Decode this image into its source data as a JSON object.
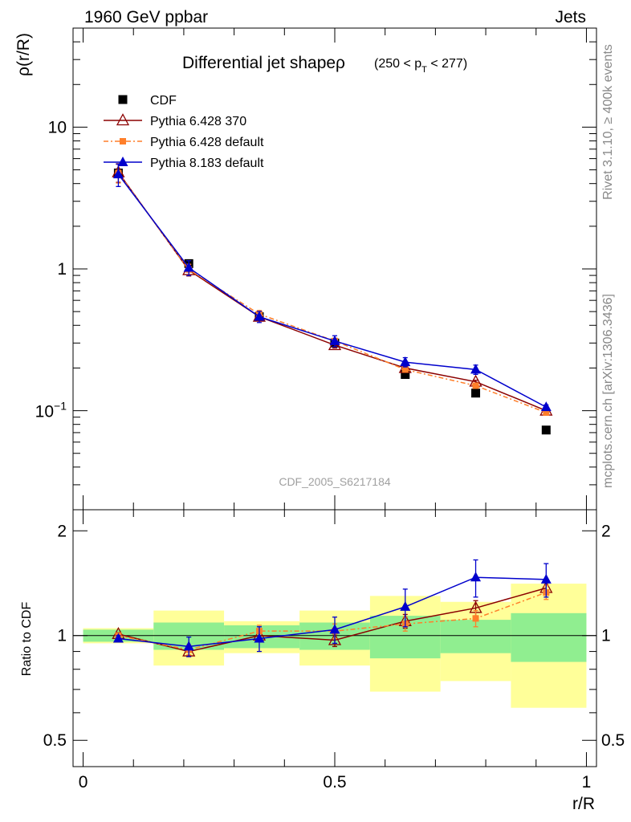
{
  "header": {
    "left": "1960 GeV ppbar",
    "right": "Jets"
  },
  "side_labels": {
    "rivet": "Rivet 3.1.10, ≥ 400k events",
    "mcplots": "mcplots.cern.ch [arXiv:1306.3436]"
  },
  "chart_data": {
    "type": "line",
    "title": "Differential jet shapeρ",
    "title_suffix": "(250 < p",
    "title_sub": "T",
    "title_end": " < 277)",
    "watermark": "CDF_2005_S6217184",
    "xlabel": "r/R",
    "ylabel": "ρ(r/R)",
    "ratio_ylabel": "Ratio to CDF",
    "x": [
      0.07,
      0.21,
      0.35,
      0.5,
      0.64,
      0.78,
      0.92
    ],
    "xlim": [
      -0.02,
      1.02
    ],
    "ylim": [
      0.02,
      50
    ],
    "ratio_ylim": [
      0.42,
      2.3
    ],
    "x_ticks": [
      {
        "v": 0,
        "label": "0"
      },
      {
        "v": 0.5,
        "label": "0.5"
      },
      {
        "v": 1,
        "label": "1"
      }
    ],
    "y_ticks": [
      {
        "v": 0.1,
        "base": "10",
        "exp": "−1"
      },
      {
        "v": 1,
        "label": "1"
      },
      {
        "v": 10,
        "label": "10"
      }
    ],
    "ratio_ticks": [
      {
        "v": 0.5,
        "label": "0.5"
      },
      {
        "v": 1,
        "label": "1"
      },
      {
        "v": 2,
        "label": "2"
      }
    ],
    "series": [
      {
        "name": "CDF",
        "color": "#000000",
        "marker": "square",
        "values": [
          4.75,
          1.09,
          0.46,
          0.3,
          0.18,
          0.133,
          0.073
        ],
        "ratio": [
          1,
          1,
          1,
          1,
          1,
          1,
          1
        ]
      },
      {
        "name": "Pythia 6.428 370",
        "color": "#8b0000",
        "marker": "triangle-open",
        "line": "solid",
        "values": [
          4.8,
          0.98,
          0.46,
          0.29,
          0.2,
          0.16,
          0.1
        ],
        "errors": [
          0.05,
          0.03,
          0.02,
          0.015,
          0.01,
          0.008,
          0.006
        ],
        "ratio": [
          1.01,
          0.9,
          1.0,
          0.97,
          1.1,
          1.2,
          1.37
        ],
        "ratio_err": [
          0.01,
          0.03,
          0.04,
          0.04,
          0.05,
          0.06,
          0.06
        ]
      },
      {
        "name": "Pythia 6.428 default",
        "color": "#ff7f2a",
        "marker": "square-small",
        "line": "dashdot",
        "values": [
          4.75,
          0.99,
          0.48,
          0.31,
          0.195,
          0.15,
          0.097
        ],
        "errors": [
          0.05,
          0.03,
          0.02,
          0.015,
          0.01,
          0.008,
          0.006
        ],
        "ratio": [
          1.0,
          0.91,
          1.03,
          1.03,
          1.08,
          1.12,
          1.33
        ],
        "ratio_err": [
          0.01,
          0.03,
          0.04,
          0.05,
          0.05,
          0.06,
          0.06
        ]
      },
      {
        "name": "Pythia 8.183 default",
        "color": "#0000cc",
        "marker": "triangle",
        "line": "solid",
        "values": [
          4.65,
          1.02,
          0.46,
          0.31,
          0.22,
          0.195,
          0.106
        ],
        "errors": [
          0.06,
          0.04,
          0.03,
          0.03,
          0.025,
          0.025,
          0.012
        ],
        "ratio": [
          0.98,
          0.93,
          0.98,
          1.04,
          1.21,
          1.47,
          1.45
        ],
        "ratio_err": [
          0.02,
          0.06,
          0.08,
          0.09,
          0.15,
          0.18,
          0.16
        ]
      }
    ],
    "bands": {
      "bins": [
        [
          0.0,
          0.14
        ],
        [
          0.14,
          0.28
        ],
        [
          0.28,
          0.43
        ],
        [
          0.43,
          0.57
        ],
        [
          0.57,
          0.71
        ],
        [
          0.71,
          0.85
        ],
        [
          0.85,
          1.0
        ]
      ],
      "stat": [
        [
          0.96,
          1.04
        ],
        [
          0.91,
          1.09
        ],
        [
          0.92,
          1.07
        ],
        [
          0.91,
          1.09
        ],
        [
          0.86,
          1.14
        ],
        [
          0.89,
          1.11
        ],
        [
          0.84,
          1.16
        ]
      ],
      "total": [
        [
          0.95,
          1.05
        ],
        [
          0.82,
          1.18
        ],
        [
          0.89,
          1.1
        ],
        [
          0.82,
          1.18
        ],
        [
          0.69,
          1.3
        ],
        [
          0.74,
          1.25
        ],
        [
          0.62,
          1.41
        ]
      ],
      "stat_color": "#90ee90",
      "total_color": "#ffff99"
    }
  }
}
